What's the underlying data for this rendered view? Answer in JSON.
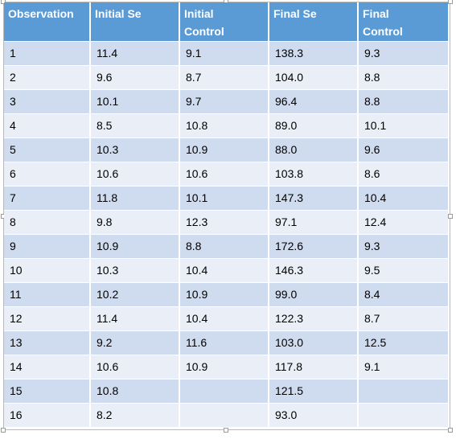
{
  "table": {
    "headers": [
      [
        "Observation"
      ],
      [
        "Initial Se"
      ],
      [
        "Initial",
        "Control"
      ],
      [
        "Final Se"
      ],
      [
        "Final",
        "Control"
      ]
    ],
    "rows": [
      [
        "1",
        "11.4",
        "9.1",
        "138.3",
        "9.3"
      ],
      [
        "2",
        "9.6",
        "8.7",
        "104.0",
        "8.8"
      ],
      [
        "3",
        "10.1",
        "9.7",
        "96.4",
        "8.8"
      ],
      [
        "4",
        "8.5",
        "10.8",
        "89.0",
        "10.1"
      ],
      [
        "5",
        "10.3",
        "10.9",
        "88.0",
        "9.6"
      ],
      [
        "6",
        "10.6",
        "10.6",
        "103.8",
        "8.6"
      ],
      [
        "7",
        "11.8",
        "10.1",
        "147.3",
        "10.4"
      ],
      [
        "8",
        "9.8",
        "12.3",
        "97.1",
        "12.4"
      ],
      [
        "9",
        "10.9",
        "8.8",
        "172.6",
        "9.3"
      ],
      [
        "10",
        "10.3",
        "10.4",
        "146.3",
        "9.5"
      ],
      [
        "11",
        "10.2",
        "10.9",
        "99.0",
        "8.4"
      ],
      [
        "12",
        "11.4",
        "10.4",
        "122.3",
        "8.7"
      ],
      [
        "13",
        "9.2",
        "11.6",
        "103.0",
        "12.5"
      ],
      [
        "14",
        "10.6",
        "10.9",
        "117.8",
        "9.1"
      ],
      [
        "15",
        "10.8",
        "",
        "121.5",
        ""
      ],
      [
        "16",
        "8.2",
        "",
        "93.0",
        ""
      ]
    ]
  },
  "colors": {
    "header_bg": "#5b9bd5",
    "header_text": "#ffffff",
    "row_band_dark": "#cfdbef",
    "row_band_light": "#e9eef7"
  }
}
